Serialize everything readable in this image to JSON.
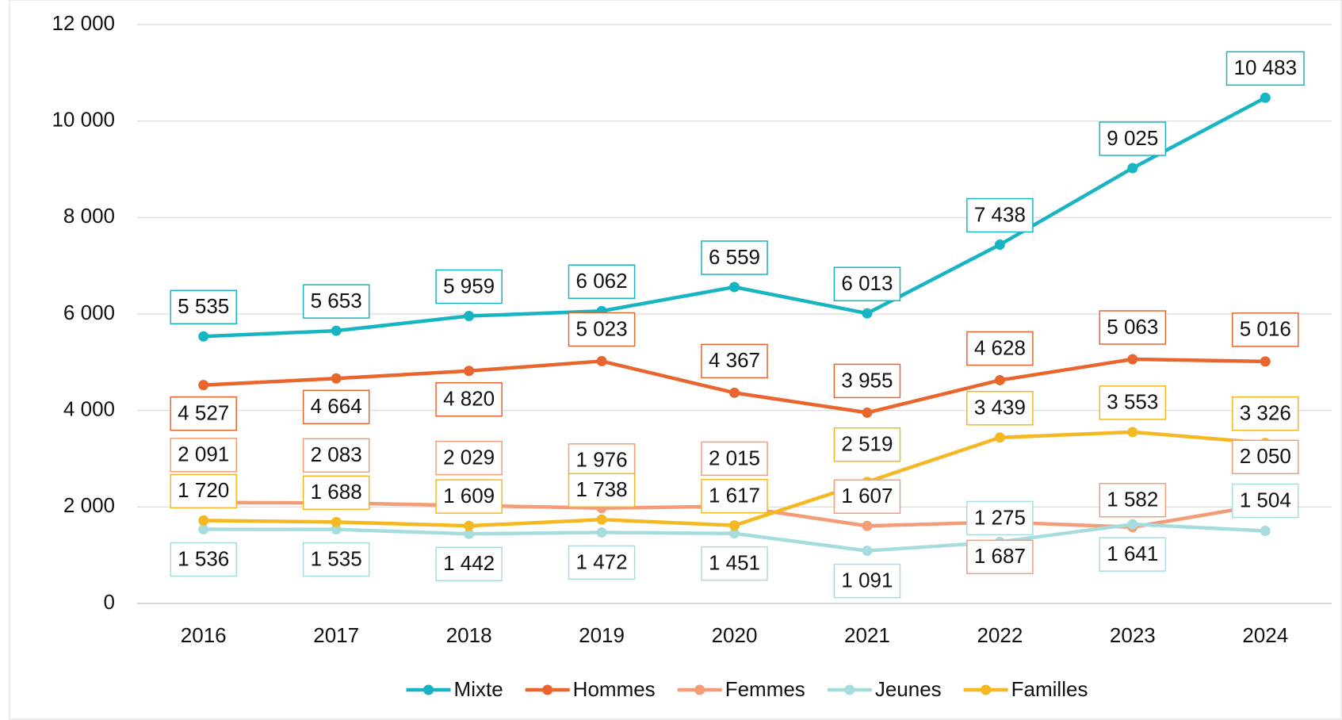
{
  "chart_data": {
    "type": "line",
    "categories": [
      "2016",
      "2017",
      "2018",
      "2019",
      "2020",
      "2021",
      "2022",
      "2023",
      "2024"
    ],
    "series": [
      {
        "name": "Mixte",
        "color": "#17b4c2",
        "values": [
          5535,
          5653,
          5959,
          6062,
          6559,
          6013,
          7438,
          9025,
          10483
        ],
        "value_labels": [
          "5 535",
          "5 653",
          "5 959",
          "6 062",
          "6 559",
          "6 013",
          "7 438",
          "9 025",
          "10 483"
        ]
      },
      {
        "name": "Hommes",
        "color": "#e8652e",
        "values": [
          4527,
          4664,
          4820,
          5023,
          4367,
          3955,
          4628,
          5063,
          5016
        ],
        "value_labels": [
          "4 527",
          "4 664",
          "4 820",
          "5 023",
          "4 367",
          "3 955",
          "4 628",
          "5 063",
          "5 016"
        ]
      },
      {
        "name": "Femmes",
        "color": "#f39d78",
        "values": [
          2091,
          2083,
          2029,
          1976,
          2015,
          1607,
          1687,
          1582,
          2050
        ],
        "value_labels": [
          "2 091",
          "2 083",
          "2 029",
          "1 976",
          "2 015",
          "1 607",
          "1 687",
          "1 582",
          "2 050"
        ]
      },
      {
        "name": "Jeunes",
        "color": "#a7dcdf",
        "values": [
          1536,
          1535,
          1442,
          1472,
          1451,
          1091,
          1275,
          1641,
          1504
        ],
        "value_labels": [
          "1 536",
          "1 535",
          "1 442",
          "1 472",
          "1 451",
          "1 091",
          "1 275",
          "1 641",
          "1 504"
        ]
      },
      {
        "name": "Familles",
        "color": "#f4b823",
        "values": [
          1720,
          1688,
          1609,
          1738,
          1617,
          2519,
          3439,
          3553,
          3326
        ],
        "value_labels": [
          "1 720",
          "1 688",
          "1 609",
          "1 738",
          "1 617",
          "2 519",
          "3 439",
          "3 553",
          "3 326"
        ]
      }
    ],
    "ylim": [
      0,
      12000
    ],
    "yticks": [
      0,
      {
        "value": 2000,
        "label": "2 000"
      },
      {
        "value": 4000,
        "label": "4 000"
      },
      {
        "value": 6000,
        "label": "6 000"
      },
      {
        "value": 8000,
        "label": "8 000"
      },
      {
        "value": 10000,
        "label": "10 000"
      },
      {
        "value": 12000,
        "label": "12 000"
      }
    ],
    "grid": true,
    "legend": "bottom"
  }
}
